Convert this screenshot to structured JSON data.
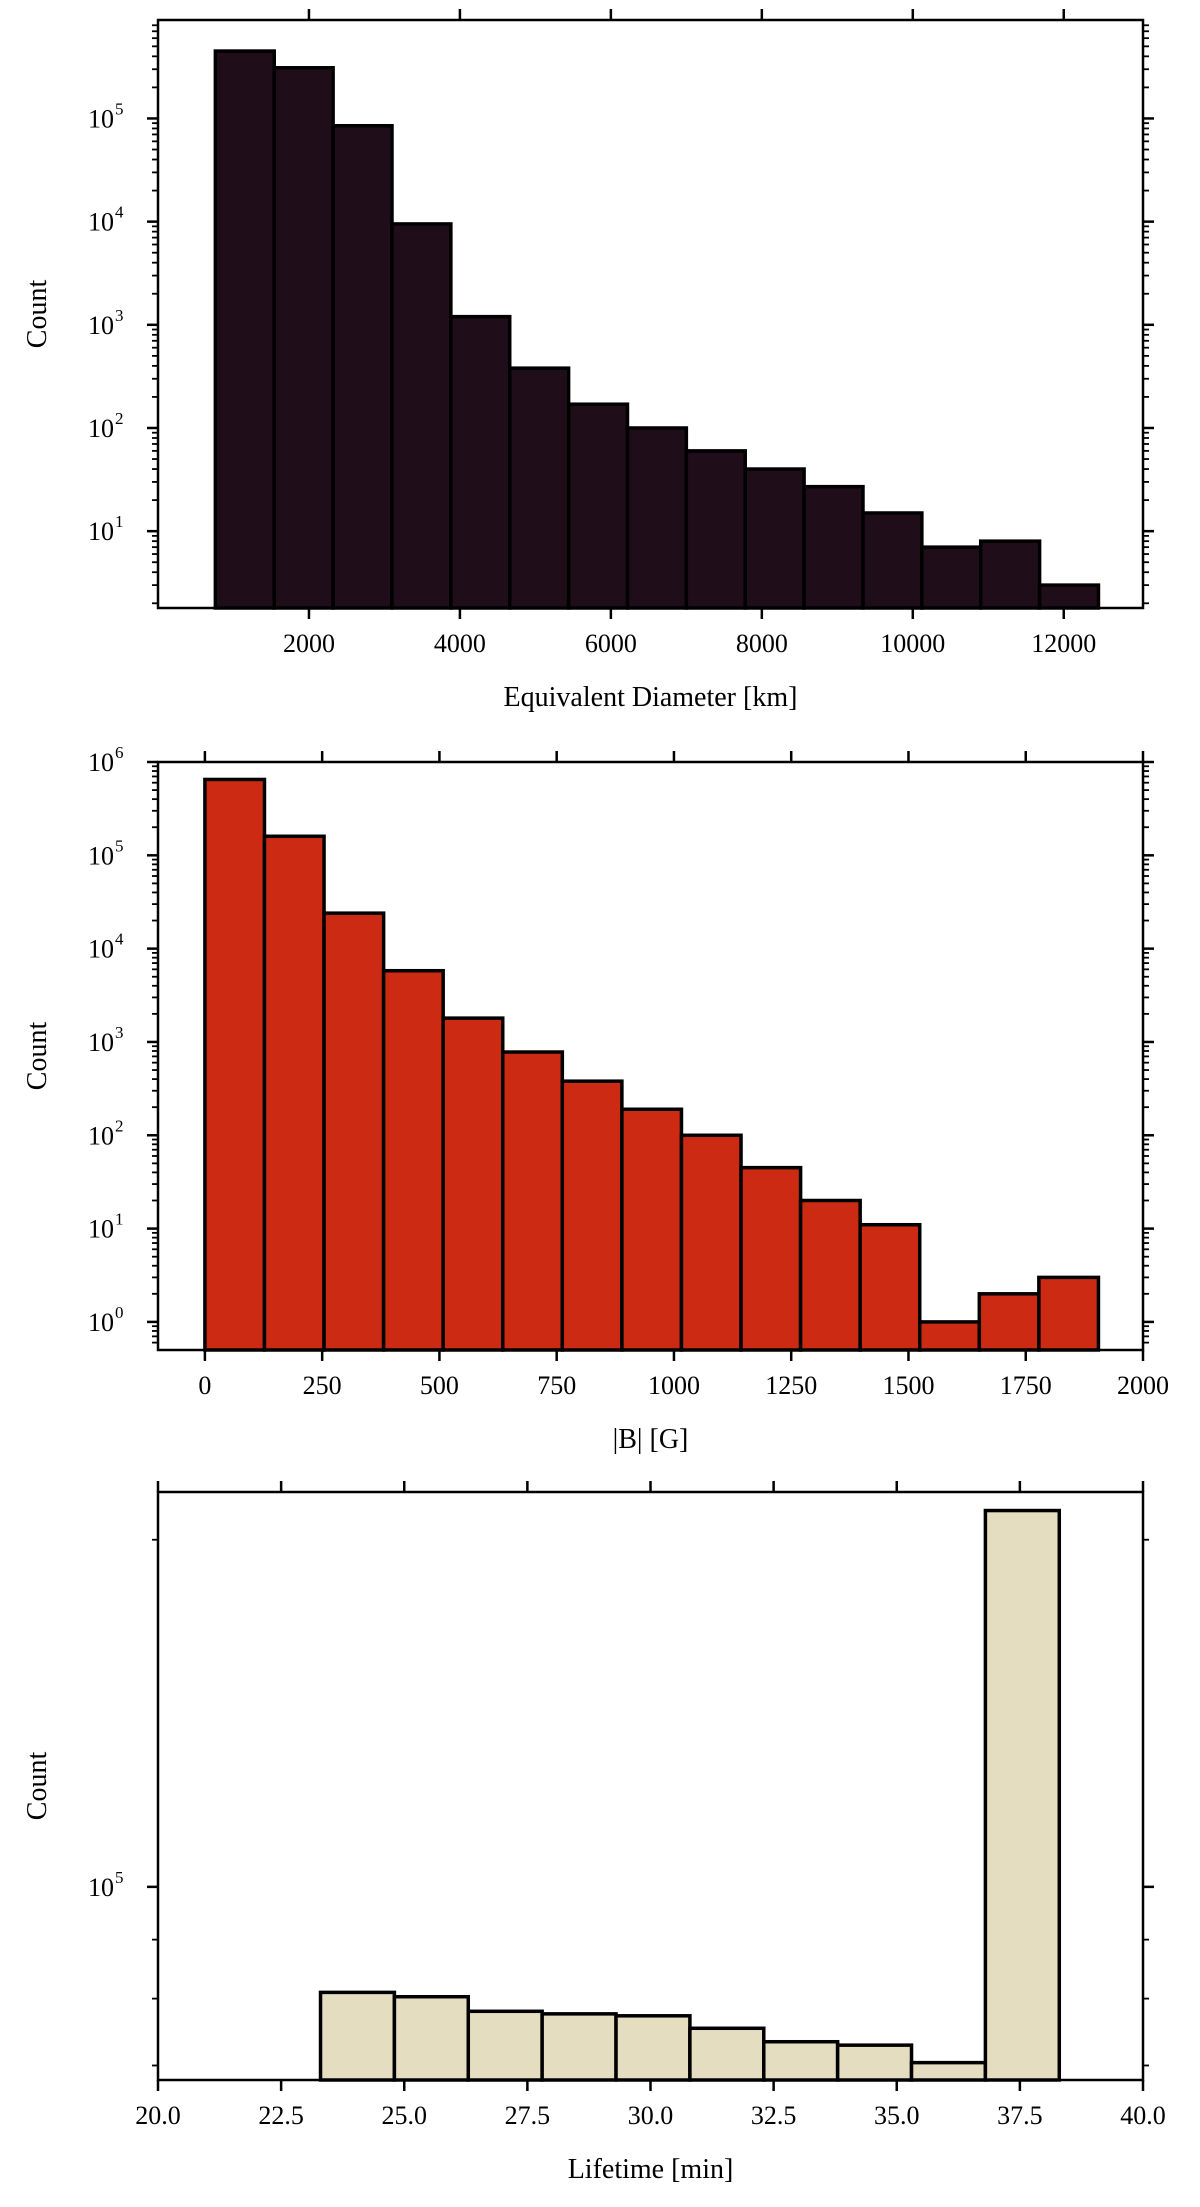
{
  "chart_data": [
    {
      "type": "bar",
      "title": "",
      "xlabel": "Equivalent Diameter [km]",
      "ylabel": "Count",
      "yscale": "log",
      "xlim": [
        0,
        13050
      ],
      "ylim": [
        1.8,
        900000
      ],
      "xticks": [
        2000,
        4000,
        6000,
        8000,
        10000,
        12000
      ],
      "xtick_labels": [
        "2000",
        "4000",
        "6000",
        "8000",
        "10000",
        "12000"
      ],
      "yticks": [
        10,
        100,
        1000,
        10000,
        100000
      ],
      "ytick_labels": [
        {
          "base": "10",
          "exp": "1"
        },
        {
          "base": "10",
          "exp": "2"
        },
        {
          "base": "10",
          "exp": "3"
        },
        {
          "base": "10",
          "exp": "4"
        },
        {
          "base": "10",
          "exp": "5"
        }
      ],
      "bin_edges": [
        760,
        1540,
        2320,
        3100,
        3880,
        4660,
        5440,
        6220,
        7000,
        7780,
        8560,
        9340,
        10120,
        10900,
        11680,
        12460
      ],
      "values": [
        450000,
        310000,
        85000,
        9500,
        1200,
        380,
        170,
        100,
        60,
        40,
        27,
        15,
        7,
        8,
        3
      ],
      "color": "#200d1a",
      "grid": false
    },
    {
      "type": "bar",
      "title": "",
      "xlabel": "|B| [G]",
      "ylabel": "Count",
      "yscale": "log",
      "xlim": [
        -100,
        2000
      ],
      "ylim": [
        0.5,
        1000000
      ],
      "xticks": [
        0,
        250,
        500,
        750,
        1000,
        1250,
        1500,
        1750,
        2000
      ],
      "xtick_labels": [
        "0",
        "250",
        "500",
        "750",
        "1000",
        "1250",
        "1500",
        "1750",
        "2000"
      ],
      "yticks": [
        1,
        10,
        100,
        1000,
        10000,
        100000,
        1000000
      ],
      "ytick_labels": [
        {
          "base": "10",
          "exp": "0"
        },
        {
          "base": "10",
          "exp": "1"
        },
        {
          "base": "10",
          "exp": "2"
        },
        {
          "base": "10",
          "exp": "3"
        },
        {
          "base": "10",
          "exp": "4"
        },
        {
          "base": "10",
          "exp": "5"
        },
        {
          "base": "10",
          "exp": "6"
        }
      ],
      "bin_edges": [
        0,
        127,
        254,
        381,
        508,
        635,
        762,
        889,
        1016,
        1143,
        1270,
        1397,
        1524,
        1651,
        1778,
        1905
      ],
      "values": [
        650000,
        160000,
        24000,
        5800,
        1800,
        780,
        380,
        190,
        100,
        45,
        20,
        11,
        1,
        2,
        3
      ],
      "color": "#cc2a12",
      "grid": false
    },
    {
      "type": "bar",
      "title": "",
      "xlabel": "Lifetime [min]",
      "ylabel": "Count",
      "yscale": "log",
      "xlim": [
        20.0,
        40.0
      ],
      "ylim": [
        68000,
        220000
      ],
      "xticks": [
        20.0,
        22.5,
        25.0,
        27.5,
        30.0,
        32.5,
        35.0,
        37.5,
        40.0
      ],
      "xtick_labels": [
        "20.0",
        "22.5",
        "25.0",
        "27.5",
        "30.0",
        "32.5",
        "35.0",
        "37.5",
        "40.0"
      ],
      "yticks": [
        100000
      ],
      "ytick_labels": [
        {
          "base": "10",
          "exp": "5"
        }
      ],
      "bin_edges": [
        23.3,
        24.8,
        26.3,
        27.8,
        29.3,
        30.8,
        32.3,
        33.8,
        35.3,
        36.8,
        38.3
      ],
      "values": [
        81000,
        80300,
        78000,
        77600,
        77300,
        75400,
        73400,
        72900,
        70400,
        212000
      ],
      "color": "#e5ddc0",
      "grid": false
    }
  ]
}
